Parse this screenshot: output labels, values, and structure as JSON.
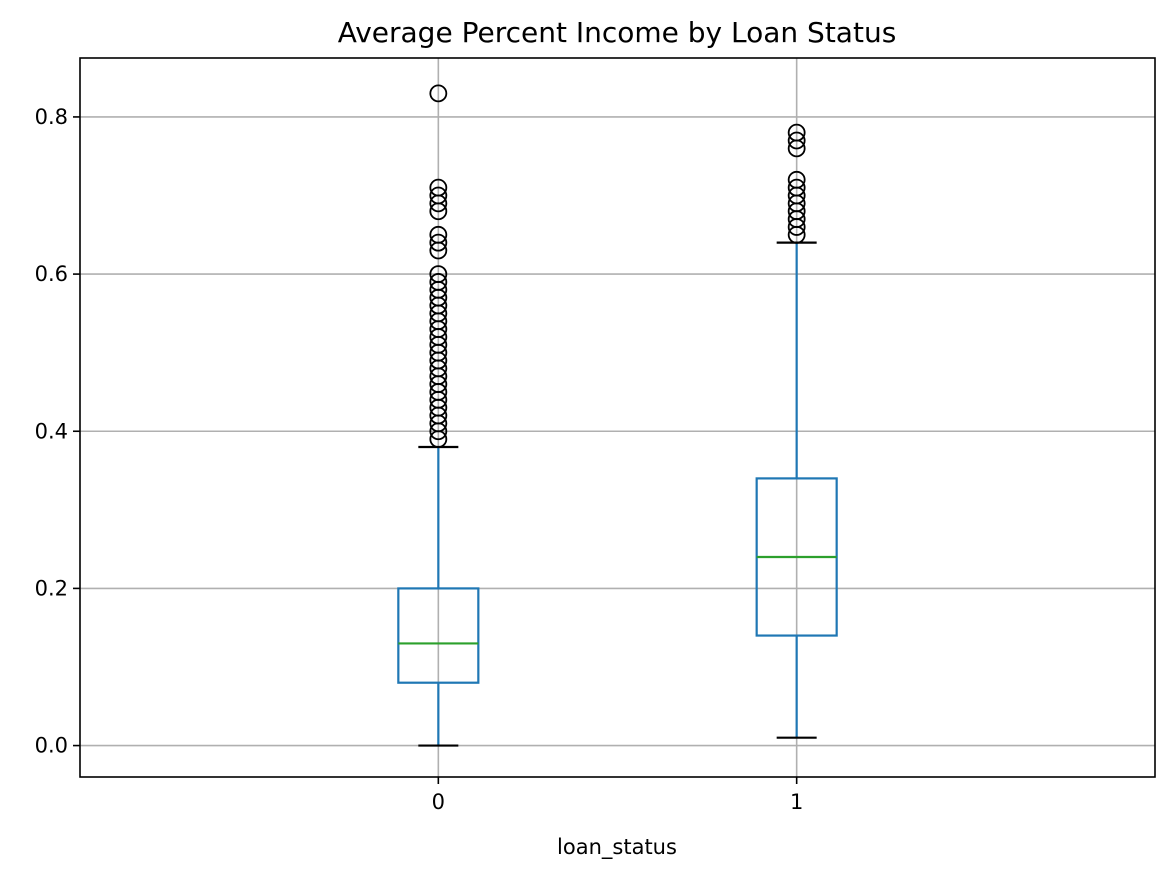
{
  "chart_data": {
    "type": "box",
    "title": "Average Percent Income by Loan Status",
    "xlabel": "loan_status",
    "ylabel": "",
    "categories": [
      "0",
      "1"
    ],
    "ylim": [
      -0.04,
      0.875
    ],
    "yticks": [
      0.0,
      0.2,
      0.4,
      0.6,
      0.8
    ],
    "ytick_labels": [
      "0.0",
      "0.2",
      "0.4",
      "0.6",
      "0.8"
    ],
    "grid": true,
    "colors": {
      "box": "#1f77b4",
      "median": "#2ca02c",
      "flier": "#000000",
      "cap": "#000000"
    },
    "boxes": [
      {
        "category": "0",
        "whisker_low": 0.0,
        "q1": 0.08,
        "median": 0.13,
        "q3": 0.2,
        "whisker_high": 0.38,
        "fliers": [
          0.39,
          0.4,
          0.41,
          0.42,
          0.43,
          0.44,
          0.45,
          0.46,
          0.47,
          0.48,
          0.49,
          0.5,
          0.51,
          0.52,
          0.53,
          0.54,
          0.55,
          0.56,
          0.57,
          0.58,
          0.59,
          0.6,
          0.63,
          0.64,
          0.65,
          0.68,
          0.69,
          0.7,
          0.71,
          0.83
        ]
      },
      {
        "category": "1",
        "whisker_low": 0.01,
        "q1": 0.14,
        "median": 0.24,
        "q3": 0.34,
        "whisker_high": 0.64,
        "fliers": [
          0.65,
          0.66,
          0.67,
          0.68,
          0.69,
          0.7,
          0.71,
          0.72,
          0.76,
          0.77,
          0.78
        ]
      }
    ]
  }
}
